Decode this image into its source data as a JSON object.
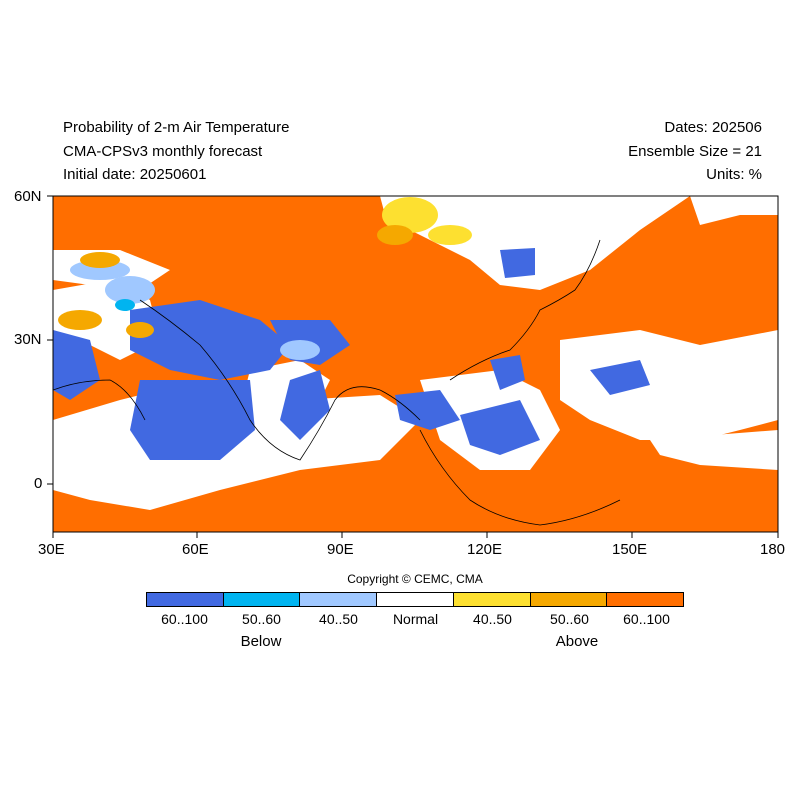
{
  "header": {
    "title": "Probability of 2-m Air Temperature",
    "model": "CMA-CPSv3 monthly forecast",
    "initial_date": "Initial date: 20250601",
    "dates": "Dates: 202506",
    "ensemble": "Ensemble Size = 21",
    "units": "Units: %"
  },
  "axes": {
    "x_ticks": [
      "30E",
      "60E",
      "90E",
      "120E",
      "150E",
      "180"
    ],
    "y_ticks": [
      "60N",
      "30N",
      "0"
    ],
    "lon_range": [
      30,
      180
    ],
    "lat_range": [
      -10,
      60
    ]
  },
  "copyright": "Copyright © CEMC, CMA",
  "legend": {
    "categories": [
      {
        "label": "60..100",
        "color": "#4169e1"
      },
      {
        "label": "50..60",
        "color": "#00b4f0"
      },
      {
        "label": "40..50",
        "color": "#a0c8ff"
      },
      {
        "label": "Normal",
        "color": "#ffffff"
      },
      {
        "label": "40..50",
        "color": "#fde030"
      },
      {
        "label": "50..60",
        "color": "#f5a800"
      },
      {
        "label": "60..100",
        "color": "#ff6e00"
      }
    ],
    "below_label": "Below",
    "above_label": "Above"
  },
  "map": {
    "background_category": "60..100 above",
    "colors": {
      "above": "#ff6e00",
      "above_mid": "#f5a800",
      "above_low": "#fde030",
      "normal": "#ffffff",
      "below_low": "#a0c8ff",
      "below_mid": "#00b4f0",
      "below": "#4169e1"
    }
  }
}
